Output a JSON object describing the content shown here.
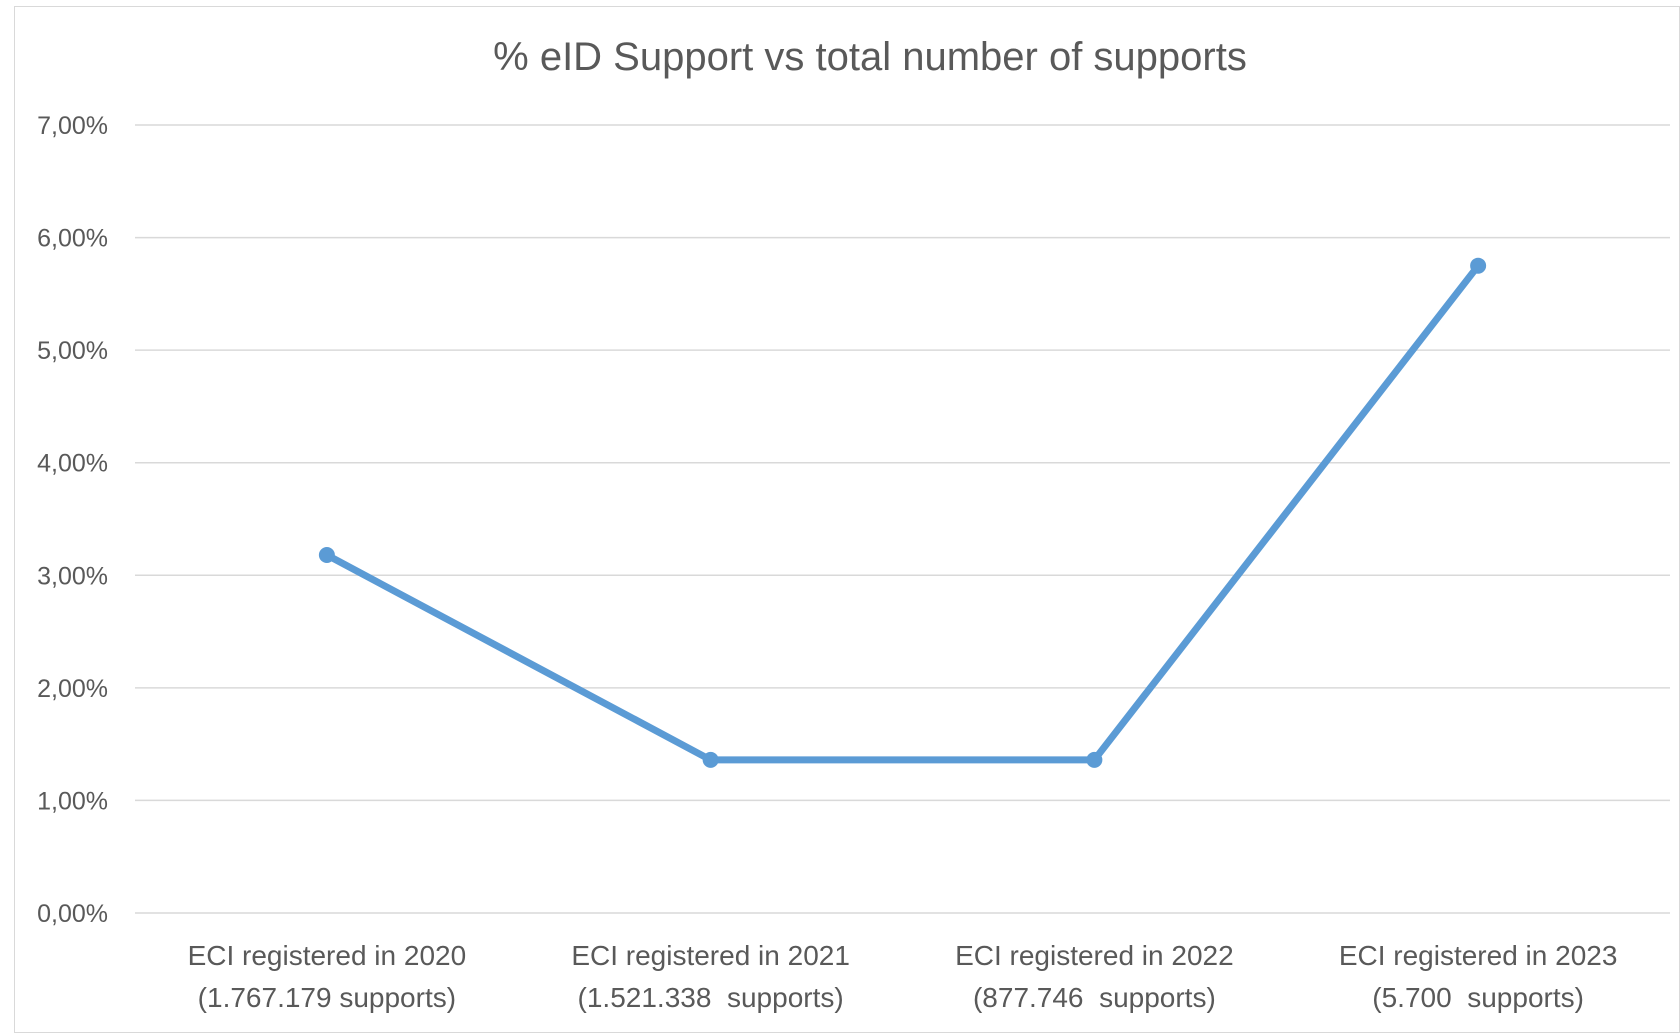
{
  "chart_data": {
    "type": "line",
    "title": "% eID Support vs total number of supports",
    "categories": [
      [
        "ECI registered in 2020",
        "(1.767.179 supports)"
      ],
      [
        "ECI registered in 2021",
        "(1.521.338  supports)"
      ],
      [
        "ECI registered in 2022",
        "(877.746  supports)"
      ],
      [
        "ECI registered in 2023",
        "(5.700  supports)"
      ]
    ],
    "series": [
      {
        "values": [
          3.18,
          1.36,
          1.36,
          5.75
        ],
        "color": "#5B9BD5"
      }
    ],
    "ylim": [
      0,
      7
    ],
    "yticks": [
      {
        "value": 0,
        "label": "0,00%"
      },
      {
        "value": 1,
        "label": "1,00%"
      },
      {
        "value": 2,
        "label": "2,00%"
      },
      {
        "value": 3,
        "label": "3,00%"
      },
      {
        "value": 4,
        "label": "4,00%"
      },
      {
        "value": 5,
        "label": "5,00%"
      },
      {
        "value": 6,
        "label": "6,00%"
      },
      {
        "value": 7,
        "label": "7,00%"
      }
    ],
    "grid": true,
    "gridline_color": "#d9d9d9",
    "legend": "none"
  }
}
